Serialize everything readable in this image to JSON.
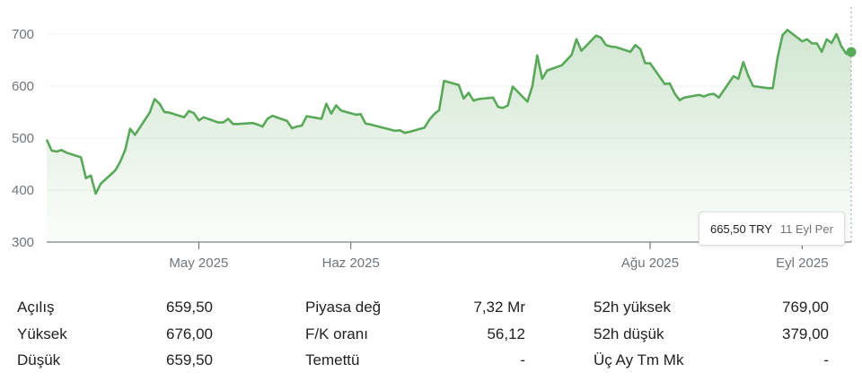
{
  "chart_data": {
    "type": "area",
    "color": "#5aa85a",
    "y_ticks": [
      "700",
      "600",
      "500",
      "400",
      "300"
    ],
    "y_tick_values": [
      700,
      600,
      500,
      400,
      300
    ],
    "ylim": [
      300,
      720
    ],
    "x_ticks": [
      {
        "label": "May 2025",
        "date": "2025-05-01"
      },
      {
        "label": "Haz 2025",
        "date": "2025-06-01"
      },
      {
        "label": "Ağu 2025",
        "date": "2025-08-01"
      },
      {
        "label": "Eyl 2025",
        "date": "2025-09-01"
      }
    ],
    "xlim": [
      "2025-03-31",
      "2025-09-11"
    ],
    "points": [
      [
        "2025-03-31",
        497
      ],
      [
        "2025-04-01",
        476
      ],
      [
        "2025-04-02",
        474
      ],
      [
        "2025-04-03",
        477
      ],
      [
        "2025-04-04",
        472
      ],
      [
        "2025-04-07",
        463
      ],
      [
        "2025-04-08",
        423
      ],
      [
        "2025-04-09",
        428
      ],
      [
        "2025-04-10",
        393
      ],
      [
        "2025-04-11",
        412
      ],
      [
        "2025-04-14",
        438
      ],
      [
        "2025-04-15",
        455
      ],
      [
        "2025-04-16",
        477
      ],
      [
        "2025-04-17",
        518
      ],
      [
        "2025-04-18",
        506
      ],
      [
        "2025-04-21",
        549
      ],
      [
        "2025-04-22",
        575
      ],
      [
        "2025-04-23",
        566
      ],
      [
        "2025-04-24",
        550
      ],
      [
        "2025-04-25",
        549
      ],
      [
        "2025-04-28",
        540
      ],
      [
        "2025-04-29",
        552
      ],
      [
        "2025-04-30",
        548
      ],
      [
        "2025-05-01",
        534
      ],
      [
        "2025-05-02",
        540
      ],
      [
        "2025-05-05",
        530
      ],
      [
        "2025-05-06",
        530
      ],
      [
        "2025-05-07",
        537
      ],
      [
        "2025-05-08",
        527
      ],
      [
        "2025-05-09",
        527
      ],
      [
        "2025-05-12",
        529
      ],
      [
        "2025-05-13",
        526
      ],
      [
        "2025-05-14",
        522
      ],
      [
        "2025-05-15",
        537
      ],
      [
        "2025-05-16",
        543
      ],
      [
        "2025-05-19",
        533
      ],
      [
        "2025-05-20",
        519
      ],
      [
        "2025-05-21",
        522
      ],
      [
        "2025-05-22",
        524
      ],
      [
        "2025-05-23",
        542
      ],
      [
        "2025-05-26",
        537
      ],
      [
        "2025-05-27",
        566
      ],
      [
        "2025-05-28",
        547
      ],
      [
        "2025-05-29",
        563
      ],
      [
        "2025-05-30",
        553
      ],
      [
        "2025-06-02",
        545
      ],
      [
        "2025-06-03",
        546
      ],
      [
        "2025-06-04",
        528
      ],
      [
        "2025-06-05",
        526
      ],
      [
        "2025-06-10",
        514
      ],
      [
        "2025-06-11",
        515
      ],
      [
        "2025-06-12",
        510
      ],
      [
        "2025-06-13",
        512
      ],
      [
        "2025-06-16",
        520
      ],
      [
        "2025-06-17",
        535
      ],
      [
        "2025-06-18",
        546
      ],
      [
        "2025-06-19",
        554
      ],
      [
        "2025-06-20",
        610
      ],
      [
        "2025-06-23",
        602
      ],
      [
        "2025-06-24",
        576
      ],
      [
        "2025-06-25",
        587
      ],
      [
        "2025-06-26",
        572
      ],
      [
        "2025-06-27",
        575
      ],
      [
        "2025-06-30",
        578
      ],
      [
        "2025-07-01",
        560
      ],
      [
        "2025-07-02",
        558
      ],
      [
        "2025-07-03",
        563
      ],
      [
        "2025-07-04",
        599
      ],
      [
        "2025-07-07",
        570
      ],
      [
        "2025-07-08",
        600
      ],
      [
        "2025-07-09",
        659
      ],
      [
        "2025-07-10",
        614
      ],
      [
        "2025-07-11",
        630
      ],
      [
        "2025-07-14",
        640
      ],
      [
        "2025-07-16",
        660
      ],
      [
        "2025-07-17",
        690
      ],
      [
        "2025-07-18",
        668
      ],
      [
        "2025-07-21",
        697
      ],
      [
        "2025-07-22",
        693
      ],
      [
        "2025-07-23",
        679
      ],
      [
        "2025-07-24",
        676
      ],
      [
        "2025-07-25",
        675
      ],
      [
        "2025-07-28",
        666
      ],
      [
        "2025-07-29",
        679
      ],
      [
        "2025-07-30",
        671
      ],
      [
        "2025-07-31",
        644
      ],
      [
        "2025-08-01",
        644
      ],
      [
        "2025-08-04",
        604
      ],
      [
        "2025-08-05",
        605
      ],
      [
        "2025-08-06",
        586
      ],
      [
        "2025-08-07",
        573
      ],
      [
        "2025-08-08",
        578
      ],
      [
        "2025-08-11",
        583
      ],
      [
        "2025-08-12",
        580
      ],
      [
        "2025-08-13",
        584
      ],
      [
        "2025-08-14",
        585
      ],
      [
        "2025-08-15",
        578
      ],
      [
        "2025-08-18",
        619
      ],
      [
        "2025-08-19",
        614
      ],
      [
        "2025-08-20",
        646
      ],
      [
        "2025-08-21",
        620
      ],
      [
        "2025-08-22",
        600
      ],
      [
        "2025-08-25",
        596
      ],
      [
        "2025-08-26",
        596
      ],
      [
        "2025-08-27",
        655
      ],
      [
        "2025-08-28",
        698
      ],
      [
        "2025-08-29",
        708
      ],
      [
        "2025-09-01",
        686
      ],
      [
        "2025-09-02",
        690
      ],
      [
        "2025-09-03",
        682
      ],
      [
        "2025-09-04",
        682
      ],
      [
        "2025-09-05",
        666
      ],
      [
        "2025-09-06",
        690
      ],
      [
        "2025-09-07",
        683
      ],
      [
        "2025-09-08",
        700
      ],
      [
        "2025-09-09",
        676
      ],
      [
        "2025-09-10",
        662
      ],
      [
        "2025-09-11",
        665.5
      ]
    ]
  },
  "tooltip": {
    "price": "665,50 TRY",
    "date": "11 Eyl Per"
  },
  "stats": [
    [
      [
        "Açılış",
        "659,50"
      ],
      [
        "Piyasa değ",
        "7,32 Mr"
      ],
      [
        "52h yüksek",
        "769,00"
      ]
    ],
    [
      [
        "Yüksek",
        "676,00"
      ],
      [
        "F/K oranı",
        "56,12"
      ],
      [
        "52h düşük",
        "379,00"
      ]
    ],
    [
      [
        "Düşük",
        "659,50"
      ],
      [
        "Temettü",
        "-"
      ],
      [
        "Üç Ay Tm Mk",
        "-"
      ]
    ]
  ]
}
